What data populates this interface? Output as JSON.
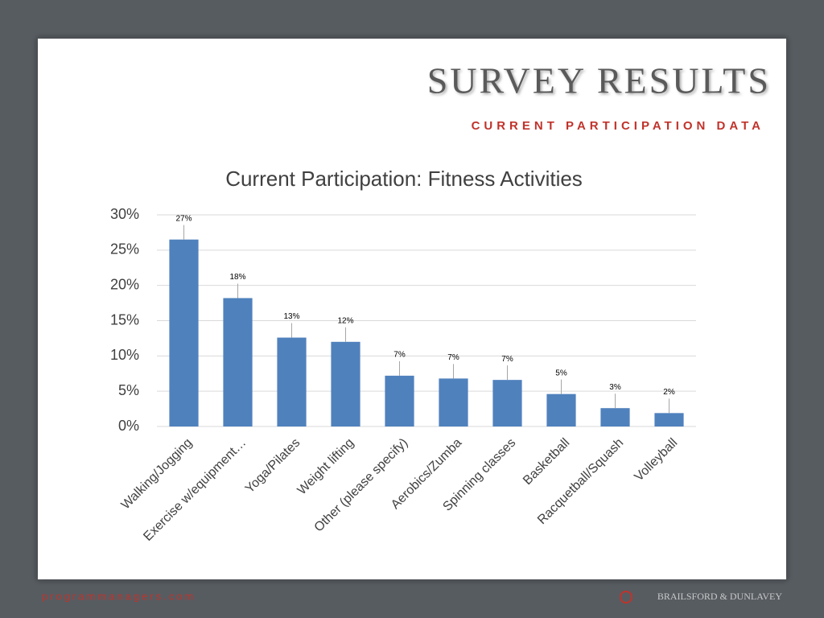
{
  "header": {
    "title": "SURVEY RESULTS",
    "subtitle": "CURRENT PARTICIPATION DATA"
  },
  "footer": {
    "left": "programmanagers.com",
    "right": "BRAILSFORD & DUNLAVEY"
  },
  "chart_data": {
    "type": "bar",
    "title": "Current Participation: Fitness Activities",
    "categories": [
      "Walking/Jogging",
      "Exercise w/equipment…",
      "Yoga/Pilates",
      "Weight lifting",
      "Other (please specify)",
      "Aerobics/Zumba",
      "Spinning classes",
      "Basketball",
      "Racquetball/Squash",
      "Volleyball"
    ],
    "values": [
      26.5,
      18.2,
      12.6,
      12.0,
      7.2,
      6.8,
      6.6,
      4.6,
      2.6,
      1.9
    ],
    "value_labels": [
      "27%",
      "18%",
      "13%",
      "12%",
      "7%",
      "7%",
      "7%",
      "5%",
      "3%",
      "2%"
    ],
    "color": "#4f81bd",
    "ylim": [
      0,
      30
    ],
    "yticks": [
      {
        "value": 0,
        "label": "0%"
      },
      {
        "value": 5,
        "label": "5%"
      },
      {
        "value": 10,
        "label": "10%"
      },
      {
        "value": 15,
        "label": "15%"
      },
      {
        "value": 20,
        "label": "20%"
      },
      {
        "value": 25,
        "label": "25%"
      },
      {
        "value": 30,
        "label": "30%"
      }
    ],
    "grid": true
  }
}
